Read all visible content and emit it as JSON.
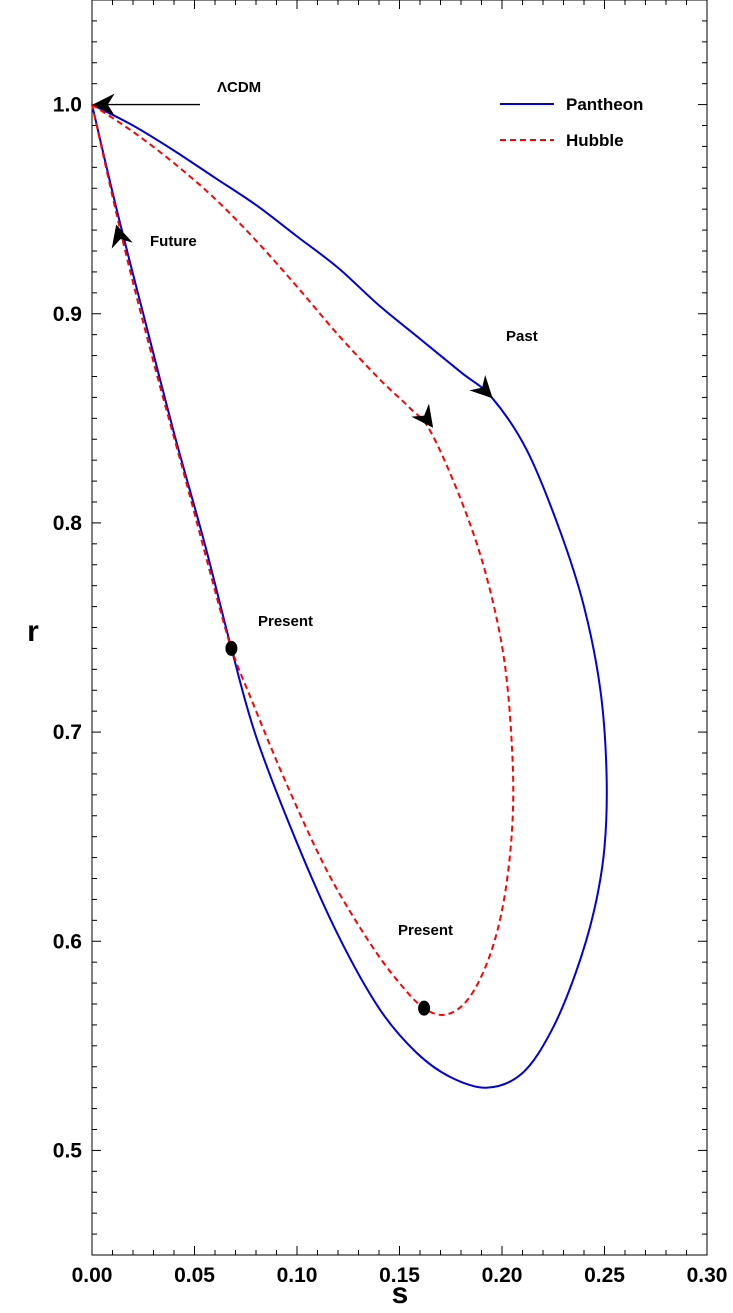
{
  "chart_data": {
    "type": "line",
    "xlabel": "s",
    "ylabel": "r",
    "xlim": [
      0.0,
      0.3
    ],
    "ylim": [
      0.45,
      1.05
    ],
    "xticks": [
      "0.00",
      "0.05",
      "0.10",
      "0.15",
      "0.20",
      "0.25",
      "0.30"
    ],
    "yticks": [
      "0.5",
      "0.6",
      "0.7",
      "0.8",
      "0.9",
      "1.0"
    ],
    "grid": false,
    "legend_position": "top-right",
    "series": [
      {
        "name": "Pantheon",
        "color": "#0000dd",
        "style": "solid",
        "points": [
          [
            0.0,
            1.0
          ],
          [
            0.02,
            0.99
          ],
          [
            0.04,
            0.978
          ],
          [
            0.06,
            0.965
          ],
          [
            0.08,
            0.952
          ],
          [
            0.1,
            0.937
          ],
          [
            0.12,
            0.922
          ],
          [
            0.14,
            0.904
          ],
          [
            0.16,
            0.888
          ],
          [
            0.18,
            0.872
          ],
          [
            0.195,
            0.86
          ],
          [
            0.212,
            0.835
          ],
          [
            0.228,
            0.797
          ],
          [
            0.24,
            0.76
          ],
          [
            0.248,
            0.72
          ],
          [
            0.251,
            0.68
          ],
          [
            0.25,
            0.645
          ],
          [
            0.245,
            0.615
          ],
          [
            0.236,
            0.585
          ],
          [
            0.224,
            0.557
          ],
          [
            0.21,
            0.537
          ],
          [
            0.193,
            0.53
          ],
          [
            0.175,
            0.535
          ],
          [
            0.158,
            0.547
          ],
          [
            0.14,
            0.568
          ],
          [
            0.12,
            0.603
          ],
          [
            0.1,
            0.647
          ],
          [
            0.08,
            0.698
          ],
          [
            0.068,
            0.74
          ],
          [
            0.055,
            0.79
          ],
          [
            0.04,
            0.843
          ],
          [
            0.025,
            0.9
          ],
          [
            0.012,
            0.95
          ],
          [
            0.0,
            1.0
          ]
        ]
      },
      {
        "name": "Hubble",
        "color": "#ff0000",
        "style": "dashed",
        "points": [
          [
            0.0,
            1.0
          ],
          [
            0.02,
            0.987
          ],
          [
            0.04,
            0.972
          ],
          [
            0.06,
            0.955
          ],
          [
            0.08,
            0.935
          ],
          [
            0.1,
            0.913
          ],
          [
            0.12,
            0.89
          ],
          [
            0.14,
            0.869
          ],
          [
            0.155,
            0.855
          ],
          [
            0.165,
            0.844
          ],
          [
            0.18,
            0.811
          ],
          [
            0.192,
            0.776
          ],
          [
            0.201,
            0.735
          ],
          [
            0.205,
            0.69
          ],
          [
            0.205,
            0.655
          ],
          [
            0.201,
            0.62
          ],
          [
            0.194,
            0.593
          ],
          [
            0.184,
            0.573
          ],
          [
            0.173,
            0.565
          ],
          [
            0.162,
            0.568
          ],
          [
            0.15,
            0.58
          ],
          [
            0.135,
            0.6
          ],
          [
            0.115,
            0.633
          ],
          [
            0.095,
            0.675
          ],
          [
            0.078,
            0.715
          ],
          [
            0.068,
            0.74
          ],
          [
            0.058,
            0.775
          ],
          [
            0.045,
            0.823
          ],
          [
            0.03,
            0.877
          ],
          [
            0.015,
            0.935
          ],
          [
            0.0,
            1.0
          ]
        ]
      }
    ],
    "markers": [
      {
        "s": 0.068,
        "r": 0.74,
        "label": "Present"
      },
      {
        "s": 0.162,
        "r": 0.568,
        "label": "Present"
      }
    ],
    "arrows": [
      {
        "from": [
          0.03,
          0.88
        ],
        "to": [
          0.012,
          0.942
        ],
        "label": "Future"
      },
      {
        "from": [
          0.17,
          0.885
        ],
        "to": [
          0.195,
          0.86
        ],
        "label": "Past"
      },
      {
        "from": [
          0.148,
          0.87
        ],
        "to": [
          0.166,
          0.846
        ],
        "label": ""
      }
    ],
    "annotations": [
      {
        "text": "ΛCDM",
        "points_to": [
          0.0,
          1.0
        ]
      }
    ]
  }
}
